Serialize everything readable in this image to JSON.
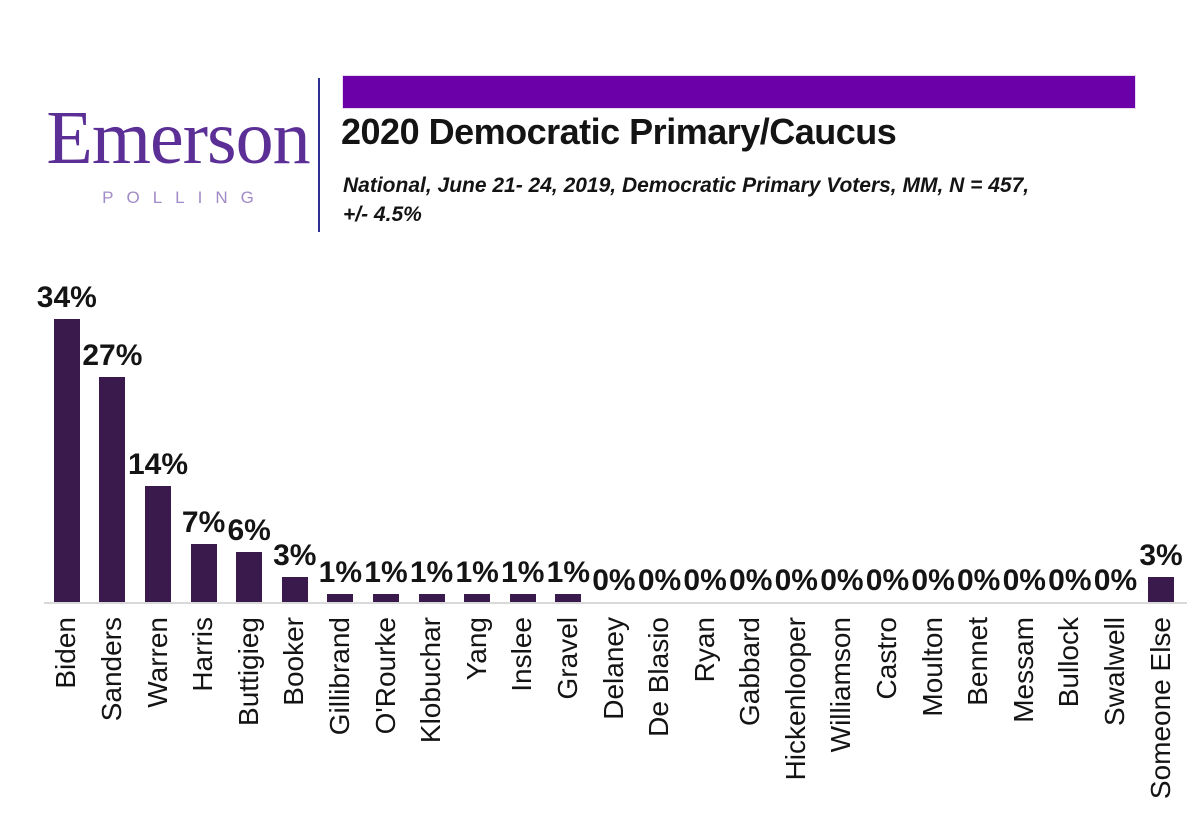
{
  "logo": {
    "name": "Emerson",
    "subname": "POLLING"
  },
  "header": {
    "title": "2020 Democratic Primary/Caucus",
    "subtitle": "National, June 21- 24, 2019, Democratic Primary Voters, MM, N = 457,\n+/- 4.5%"
  },
  "colors": {
    "banner": "#6C00A8",
    "divider": "#2E3192",
    "bar": "#3A1A4D",
    "logo_text": "#5B2F96",
    "logo_sub": "#A18BC6",
    "axis": "#D9D9D9"
  },
  "chart_data": {
    "type": "bar",
    "title": "2020 Democratic Primary/Caucus",
    "subtitle": "National, June 21- 24, 2019, Democratic Primary Voters, MM, N = 457, +/- 4.5%",
    "categories": [
      "Biden",
      "Sanders",
      "Warren",
      "Harris",
      "Buttigieg",
      "Booker",
      "Gillibrand",
      "O'Rourke",
      "Klobuchar",
      "Yang",
      "Inslee",
      "Gravel",
      "Delaney",
      "De Blasio",
      "Ryan",
      "Gabbard",
      "Hickenlooper",
      "Williamson",
      "Castro",
      "Moulton",
      "Bennet",
      "Messam",
      "Bullock",
      "Swalwell",
      "Someone Else"
    ],
    "values": [
      34,
      27,
      14,
      7,
      6,
      3,
      1,
      1,
      1,
      1,
      1,
      1,
      0,
      0,
      0,
      0,
      0,
      0,
      0,
      0,
      0,
      0,
      0,
      0,
      3
    ],
    "value_labels": [
      "34%",
      "27%",
      "14%",
      "7%",
      "6%",
      "3%",
      "1%",
      "1%",
      "1%",
      "1%",
      "1%",
      "1%",
      "0%",
      "0%",
      "0%",
      "0%",
      "0%",
      "0%",
      "0%",
      "0%",
      "0%",
      "0%",
      "0%",
      "0%",
      "3%"
    ],
    "bar_color": "#3A1A4D",
    "xlabel": "",
    "ylabel": "",
    "ylim": [
      0,
      37
    ],
    "grid": false,
    "legend": null,
    "x_label_rotation_deg": -90,
    "data_labels_position": "above-bar"
  }
}
